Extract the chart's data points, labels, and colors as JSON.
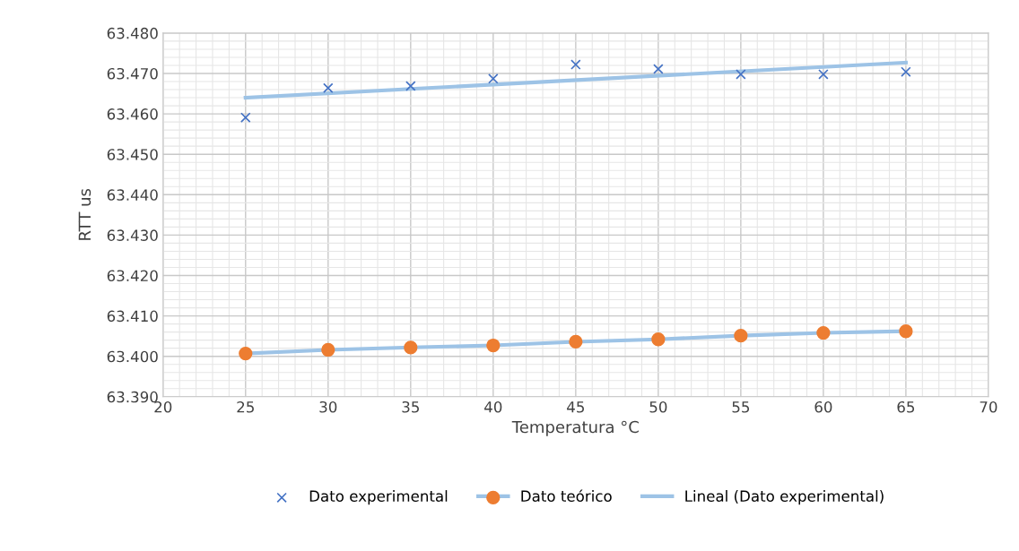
{
  "chart_data": {
    "type": "scatter",
    "xlabel": "Temperatura °C",
    "ylabel": "RTT us",
    "x": [
      25,
      30,
      35,
      40,
      45,
      50,
      55,
      60,
      65
    ],
    "series": [
      {
        "name": "Dato experimental",
        "marker": "cross",
        "color": "#4472c4",
        "values": [
          63.4591,
          63.4664,
          63.4669,
          63.4687,
          63.4722,
          63.4711,
          63.4698,
          63.4698,
          63.4704
        ]
      },
      {
        "name": "Dato teórico",
        "type": "line",
        "marker": "circle",
        "color": "#9dc3e6",
        "colors": [
          "#ed7d31",
          "#ed7d31",
          "#ed7d31",
          "#ed7d31",
          "#ed7d31",
          "#ed7d31",
          "#ed7d31",
          "#ed7d31",
          "#ed7d31"
        ],
        "values": [
          63.4007,
          63.4016,
          63.4022,
          63.4027,
          63.4036,
          63.4042,
          63.4051,
          63.4058,
          63.4062
        ]
      },
      {
        "name": "Lineal (Dato experimental)",
        "type": "line",
        "marker": "none",
        "color": "#9dc3e6",
        "x": [
          25,
          65
        ],
        "values": [
          63.464,
          63.4727
        ]
      }
    ],
    "xlim": [
      20,
      70
    ],
    "xticks": [
      20,
      25,
      30,
      35,
      40,
      45,
      50,
      55,
      60,
      65,
      70
    ],
    "ylim": [
      63.39,
      63.48
    ],
    "yticks": [
      {
        "value": 63.39,
        "label": "63.390"
      },
      {
        "value": 63.4,
        "label": "63.400"
      },
      {
        "value": 63.41,
        "label": "63.410"
      },
      {
        "value": 63.42,
        "label": "63.420"
      },
      {
        "value": 63.43,
        "label": "63.430"
      },
      {
        "value": 63.44,
        "label": "63.440"
      },
      {
        "value": 63.45,
        "label": "63.450"
      },
      {
        "value": 63.46,
        "label": "63.460"
      },
      {
        "value": 63.47,
        "label": "63.470"
      },
      {
        "value": 63.48,
        "label": "63.480"
      }
    ],
    "grid": true,
    "legend": "bottom"
  }
}
